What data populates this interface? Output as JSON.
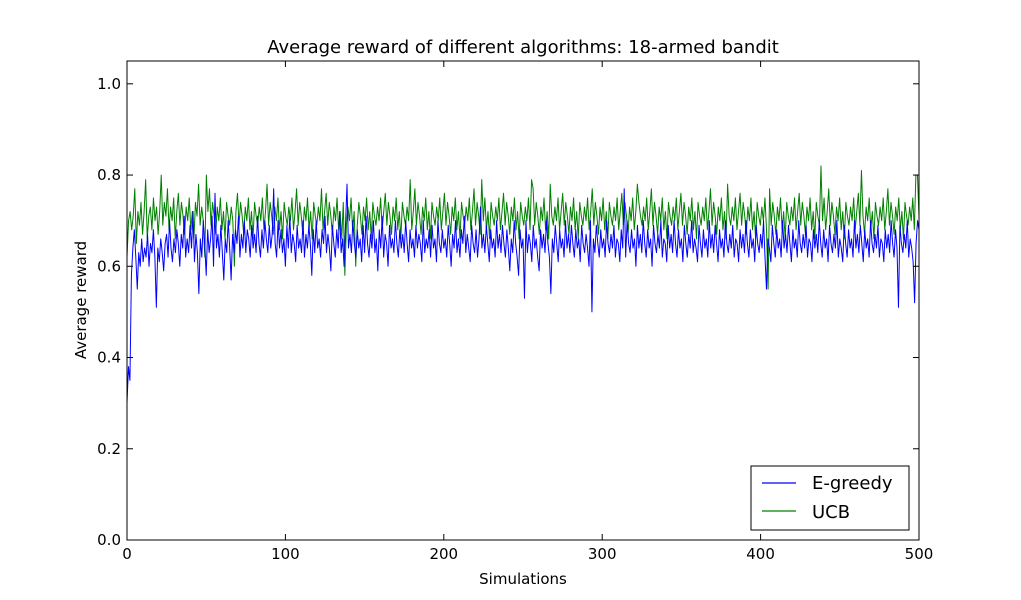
{
  "chart_data": {
    "type": "line",
    "title": "Average reward of different algorithms: 18-armed bandit",
    "xlabel": "Simulations",
    "ylabel": "Average reward",
    "xlim": [
      0,
      500
    ],
    "ylim": [
      0,
      1.05
    ],
    "xticks": [
      "0",
      "100",
      "200",
      "300",
      "400",
      "500"
    ],
    "yticks": [
      "0.0",
      "0.2",
      "0.4",
      "0.6",
      "0.8",
      "1.0"
    ],
    "grid": false,
    "legend_position": "bottom-right",
    "series": [
      {
        "name": "E-greedy",
        "color": "#0000ff",
        "values": [
          0.3,
          0.38,
          0.35,
          0.58,
          0.64,
          0.68,
          0.62,
          0.55,
          0.63,
          0.6,
          0.66,
          0.61,
          0.64,
          0.62,
          0.67,
          0.6,
          0.65,
          0.63,
          0.68,
          0.62,
          0.51,
          0.64,
          0.61,
          0.66,
          0.63,
          0.59,
          0.65,
          0.67,
          0.62,
          0.7,
          0.64,
          0.61,
          0.66,
          0.63,
          0.68,
          0.65,
          0.6,
          0.67,
          0.64,
          0.71,
          0.62,
          0.66,
          0.63,
          0.69,
          0.64,
          0.72,
          0.61,
          0.67,
          0.63,
          0.54,
          0.66,
          0.62,
          0.7,
          0.65,
          0.58,
          0.68,
          0.63,
          0.66,
          0.71,
          0.6,
          0.76,
          0.64,
          0.67,
          0.62,
          0.69,
          0.63,
          0.57,
          0.66,
          0.63,
          0.7,
          0.64,
          0.57,
          0.67,
          0.63,
          0.68,
          0.65,
          0.71,
          0.62,
          0.67,
          0.64,
          0.7,
          0.63,
          0.68,
          0.66,
          0.62,
          0.69,
          0.64,
          0.67,
          0.63,
          0.71,
          0.65,
          0.62,
          0.68,
          0.64,
          0.7,
          0.66,
          0.63,
          0.69,
          0.64,
          0.67,
          0.77,
          0.65,
          0.62,
          0.7,
          0.64,
          0.68,
          0.63,
          0.66,
          0.6,
          0.69,
          0.64,
          0.71,
          0.63,
          0.67,
          0.65,
          0.61,
          0.69,
          0.64,
          0.66,
          0.63,
          0.7,
          0.62,
          0.67,
          0.64,
          0.69,
          0.65,
          0.58,
          0.68,
          0.63,
          0.7,
          0.64,
          0.66,
          0.62,
          0.68,
          0.65,
          0.71,
          0.63,
          0.67,
          0.64,
          0.59,
          0.69,
          0.65,
          0.62,
          0.68,
          0.64,
          0.72,
          0.63,
          0.66,
          0.6,
          0.69,
          0.78,
          0.64,
          0.67,
          0.63,
          0.7,
          0.65,
          0.62,
          0.68,
          0.64,
          0.66,
          0.61,
          0.69,
          0.63,
          0.71,
          0.65,
          0.62,
          0.67,
          0.64,
          0.7,
          0.63,
          0.66,
          0.59,
          0.68,
          0.64,
          0.71,
          0.62,
          0.67,
          0.65,
          0.6,
          0.69,
          0.64,
          0.66,
          0.63,
          0.7,
          0.65,
          0.62,
          0.68,
          0.64,
          0.67,
          0.63,
          0.7,
          0.65,
          0.61,
          0.68,
          0.64,
          0.66,
          0.62,
          0.69,
          0.64,
          0.67,
          0.65,
          0.61,
          0.7,
          0.63,
          0.66,
          0.64,
          0.68,
          0.62,
          0.69,
          0.64,
          0.66,
          0.61,
          0.7,
          0.65,
          0.63,
          0.68,
          0.64,
          0.66,
          0.62,
          0.69,
          0.65,
          0.6,
          0.67,
          0.64,
          0.7,
          0.63,
          0.66,
          0.62,
          0.68,
          0.65,
          0.71,
          0.63,
          0.67,
          0.64,
          0.61,
          0.69,
          0.65,
          0.63,
          0.68,
          0.62,
          0.66,
          0.73,
          0.64,
          0.67,
          0.63,
          0.69,
          0.65,
          0.61,
          0.68,
          0.64,
          0.66,
          0.62,
          0.7,
          0.64,
          0.67,
          0.63,
          0.69,
          0.65,
          0.62,
          0.68,
          0.64,
          0.59,
          0.66,
          0.63,
          0.7,
          0.65,
          0.62,
          0.58,
          0.68,
          0.64,
          0.66,
          0.53,
          0.7,
          0.63,
          0.67,
          0.65,
          0.61,
          0.69,
          0.64,
          0.66,
          0.62,
          0.59,
          0.68,
          0.64,
          0.67,
          0.63,
          0.7,
          0.65,
          0.62,
          0.54,
          0.66,
          0.63,
          0.69,
          0.65,
          0.61,
          0.68,
          0.64,
          0.66,
          0.62,
          0.7,
          0.64,
          0.67,
          0.63,
          0.69,
          0.65,
          0.62,
          0.68,
          0.64,
          0.66,
          0.61,
          0.69,
          0.65,
          0.63,
          0.67,
          0.64,
          0.6,
          0.7,
          0.5,
          0.66,
          0.63,
          0.69,
          0.65,
          0.62,
          0.68,
          0.64,
          0.66,
          0.62,
          0.7,
          0.65,
          0.63,
          0.67,
          0.64,
          0.69,
          0.62,
          0.66,
          0.65,
          0.61,
          0.68,
          0.64,
          0.77,
          0.62,
          0.7,
          0.65,
          0.63,
          0.68,
          0.64,
          0.66,
          0.6,
          0.69,
          0.64,
          0.67,
          0.63,
          0.7,
          0.65,
          0.62,
          0.68,
          0.64,
          0.66,
          0.6,
          0.69,
          0.65,
          0.63,
          0.67,
          0.64,
          0.7,
          0.62,
          0.66,
          0.65,
          0.61,
          0.69,
          0.64,
          0.67,
          0.63,
          0.7,
          0.65,
          0.62,
          0.68,
          0.64,
          0.66,
          0.61,
          0.69,
          0.65,
          0.62,
          0.67,
          0.64,
          0.7,
          0.63,
          0.66,
          0.64,
          0.61,
          0.69,
          0.65,
          0.62,
          0.68,
          0.64,
          0.66,
          0.62,
          0.7,
          0.64,
          0.67,
          0.63,
          0.69,
          0.65,
          0.61,
          0.68,
          0.64,
          0.66,
          0.62,
          0.7,
          0.65,
          0.63,
          0.67,
          0.64,
          0.69,
          0.62,
          0.66,
          0.65,
          0.61,
          0.68,
          0.64,
          0.67,
          0.63,
          0.7,
          0.65,
          0.62,
          0.68,
          0.64,
          0.66,
          0.61,
          0.69,
          0.65,
          0.63,
          0.67,
          0.64,
          0.7,
          0.62,
          0.55,
          0.66,
          0.64,
          0.61,
          0.69,
          0.65,
          0.62,
          0.68,
          0.64,
          0.66,
          0.62,
          0.7,
          0.64,
          0.67,
          0.63,
          0.69,
          0.65,
          0.61,
          0.68,
          0.64,
          0.66,
          0.62,
          0.7,
          0.65,
          0.63,
          0.67,
          0.64,
          0.69,
          0.62,
          0.66,
          0.65,
          0.61,
          0.68,
          0.64,
          0.67,
          0.63,
          0.7,
          0.65,
          0.62,
          0.68,
          0.64,
          0.66,
          0.61,
          0.69,
          0.65,
          0.63,
          0.67,
          0.64,
          0.7,
          0.62,
          0.66,
          0.64,
          0.61,
          0.69,
          0.65,
          0.62,
          0.68,
          0.64,
          0.66,
          0.62,
          0.7,
          0.64,
          0.67,
          0.63,
          0.69,
          0.65,
          0.61,
          0.68,
          0.64,
          0.66,
          0.62,
          0.7,
          0.65,
          0.63,
          0.67,
          0.64,
          0.69,
          0.62,
          0.66,
          0.65,
          0.61,
          0.68,
          0.64,
          0.67,
          0.63,
          0.7,
          0.65,
          0.62,
          0.68,
          0.64,
          0.51,
          0.69,
          0.65,
          0.63,
          0.67,
          0.64,
          0.7,
          0.62,
          0.66,
          0.64,
          0.61,
          0.52,
          0.65,
          0.7,
          0.68
        ]
      },
      {
        "name": "UCB",
        "color": "#008000",
        "values": [
          0.62,
          0.7,
          0.72,
          0.68,
          0.71,
          0.77,
          0.65,
          0.72,
          0.69,
          0.74,
          0.67,
          0.72,
          0.79,
          0.66,
          0.71,
          0.73,
          0.68,
          0.75,
          0.7,
          0.73,
          0.67,
          0.72,
          0.8,
          0.69,
          0.74,
          0.71,
          0.77,
          0.68,
          0.73,
          0.7,
          0.75,
          0.66,
          0.72,
          0.76,
          0.69,
          0.74,
          0.71,
          0.67,
          0.73,
          0.7,
          0.75,
          0.68,
          0.72,
          0.66,
          0.74,
          0.71,
          0.78,
          0.69,
          0.73,
          0.7,
          0.62,
          0.8,
          0.72,
          0.77,
          0.69,
          0.74,
          0.71,
          0.67,
          0.73,
          0.7,
          0.75,
          0.68,
          0.72,
          0.66,
          0.74,
          0.71,
          0.69,
          0.73,
          0.7,
          0.6,
          0.72,
          0.76,
          0.69,
          0.74,
          0.71,
          0.67,
          0.73,
          0.7,
          0.75,
          0.68,
          0.72,
          0.66,
          0.74,
          0.71,
          0.69,
          0.73,
          0.7,
          0.75,
          0.68,
          0.72,
          0.78,
          0.69,
          0.74,
          0.71,
          0.67,
          0.73,
          0.7,
          0.75,
          0.68,
          0.72,
          0.66,
          0.74,
          0.71,
          0.69,
          0.73,
          0.7,
          0.75,
          0.68,
          0.72,
          0.77,
          0.69,
          0.74,
          0.71,
          0.67,
          0.73,
          0.7,
          0.75,
          0.68,
          0.72,
          0.66,
          0.74,
          0.71,
          0.69,
          0.73,
          0.7,
          0.77,
          0.68,
          0.72,
          0.76,
          0.69,
          0.74,
          0.71,
          0.67,
          0.73,
          0.7,
          0.75,
          0.68,
          0.72,
          0.66,
          0.74,
          0.58,
          0.69,
          0.73,
          0.7,
          0.75,
          0.68,
          0.72,
          0.6,
          0.69,
          0.74,
          0.71,
          0.67,
          0.73,
          0.7,
          0.75,
          0.68,
          0.72,
          0.66,
          0.74,
          0.71,
          0.69,
          0.73,
          0.7,
          0.75,
          0.68,
          0.72,
          0.76,
          0.69,
          0.74,
          0.71,
          0.67,
          0.73,
          0.7,
          0.75,
          0.68,
          0.72,
          0.66,
          0.74,
          0.71,
          0.69,
          0.73,
          0.7,
          0.79,
          0.68,
          0.72,
          0.77,
          0.69,
          0.74,
          0.71,
          0.67,
          0.73,
          0.7,
          0.75,
          0.68,
          0.72,
          0.66,
          0.74,
          0.71,
          0.69,
          0.73,
          0.7,
          0.75,
          0.68,
          0.72,
          0.76,
          0.69,
          0.74,
          0.71,
          0.67,
          0.73,
          0.7,
          0.75,
          0.68,
          0.72,
          0.66,
          0.74,
          0.71,
          0.69,
          0.73,
          0.7,
          0.75,
          0.68,
          0.72,
          0.77,
          0.69,
          0.74,
          0.71,
          0.67,
          0.79,
          0.7,
          0.75,
          0.68,
          0.72,
          0.66,
          0.74,
          0.71,
          0.69,
          0.73,
          0.7,
          0.75,
          0.68,
          0.72,
          0.76,
          0.69,
          0.74,
          0.71,
          0.67,
          0.73,
          0.7,
          0.75,
          0.68,
          0.72,
          0.66,
          0.74,
          0.71,
          0.69,
          0.73,
          0.7,
          0.75,
          0.68,
          0.79,
          0.77,
          0.69,
          0.74,
          0.71,
          0.67,
          0.73,
          0.7,
          0.75,
          0.68,
          0.72,
          0.66,
          0.78,
          0.71,
          0.69,
          0.73,
          0.7,
          0.75,
          0.68,
          0.72,
          0.76,
          0.69,
          0.74,
          0.71,
          0.67,
          0.73,
          0.7,
          0.75,
          0.68,
          0.72,
          0.66,
          0.74,
          0.71,
          0.69,
          0.73,
          0.7,
          0.75,
          0.68,
          0.72,
          0.77,
          0.69,
          0.74,
          0.71,
          0.67,
          0.73,
          0.7,
          0.75,
          0.68,
          0.72,
          0.66,
          0.74,
          0.71,
          0.69,
          0.73,
          0.7,
          0.75,
          0.68,
          0.72,
          0.76,
          0.69,
          0.74,
          0.71,
          0.67,
          0.73,
          0.7,
          0.75,
          0.68,
          0.72,
          0.78,
          0.74,
          0.71,
          0.69,
          0.73,
          0.7,
          0.75,
          0.68,
          0.72,
          0.77,
          0.69,
          0.74,
          0.71,
          0.67,
          0.73,
          0.7,
          0.75,
          0.68,
          0.72,
          0.66,
          0.74,
          0.71,
          0.69,
          0.73,
          0.7,
          0.75,
          0.68,
          0.72,
          0.76,
          0.69,
          0.74,
          0.71,
          0.67,
          0.73,
          0.7,
          0.75,
          0.68,
          0.72,
          0.66,
          0.74,
          0.71,
          0.69,
          0.73,
          0.7,
          0.75,
          0.68,
          0.72,
          0.77,
          0.69,
          0.74,
          0.71,
          0.67,
          0.73,
          0.7,
          0.75,
          0.68,
          0.72,
          0.66,
          0.78,
          0.71,
          0.69,
          0.73,
          0.7,
          0.75,
          0.68,
          0.72,
          0.76,
          0.69,
          0.74,
          0.71,
          0.67,
          0.73,
          0.7,
          0.75,
          0.68,
          0.72,
          0.66,
          0.74,
          0.71,
          0.69,
          0.73,
          0.7,
          0.75,
          0.68,
          0.55,
          0.77,
          0.69,
          0.74,
          0.71,
          0.67,
          0.73,
          0.7,
          0.75,
          0.68,
          0.72,
          0.66,
          0.74,
          0.71,
          0.69,
          0.73,
          0.7,
          0.75,
          0.68,
          0.72,
          0.76,
          0.69,
          0.74,
          0.71,
          0.67,
          0.73,
          0.7,
          0.75,
          0.68,
          0.72,
          0.66,
          0.74,
          0.71,
          0.69,
          0.82,
          0.7,
          0.75,
          0.68,
          0.72,
          0.77,
          0.69,
          0.74,
          0.71,
          0.67,
          0.73,
          0.7,
          0.75,
          0.68,
          0.72,
          0.66,
          0.74,
          0.71,
          0.69,
          0.73,
          0.7,
          0.75,
          0.68,
          0.72,
          0.76,
          0.69,
          0.81,
          0.71,
          0.67,
          0.73,
          0.7,
          0.75,
          0.68,
          0.72,
          0.66,
          0.74,
          0.71,
          0.69,
          0.73,
          0.7,
          0.75,
          0.68,
          0.72,
          0.77,
          0.69,
          0.74,
          0.71,
          0.67,
          0.73,
          0.7,
          0.75,
          0.68,
          0.72,
          0.66,
          0.74,
          0.71,
          0.69,
          0.73,
          0.7,
          0.75,
          0.68,
          0.8,
          0.8,
          0.71
        ]
      }
    ]
  }
}
